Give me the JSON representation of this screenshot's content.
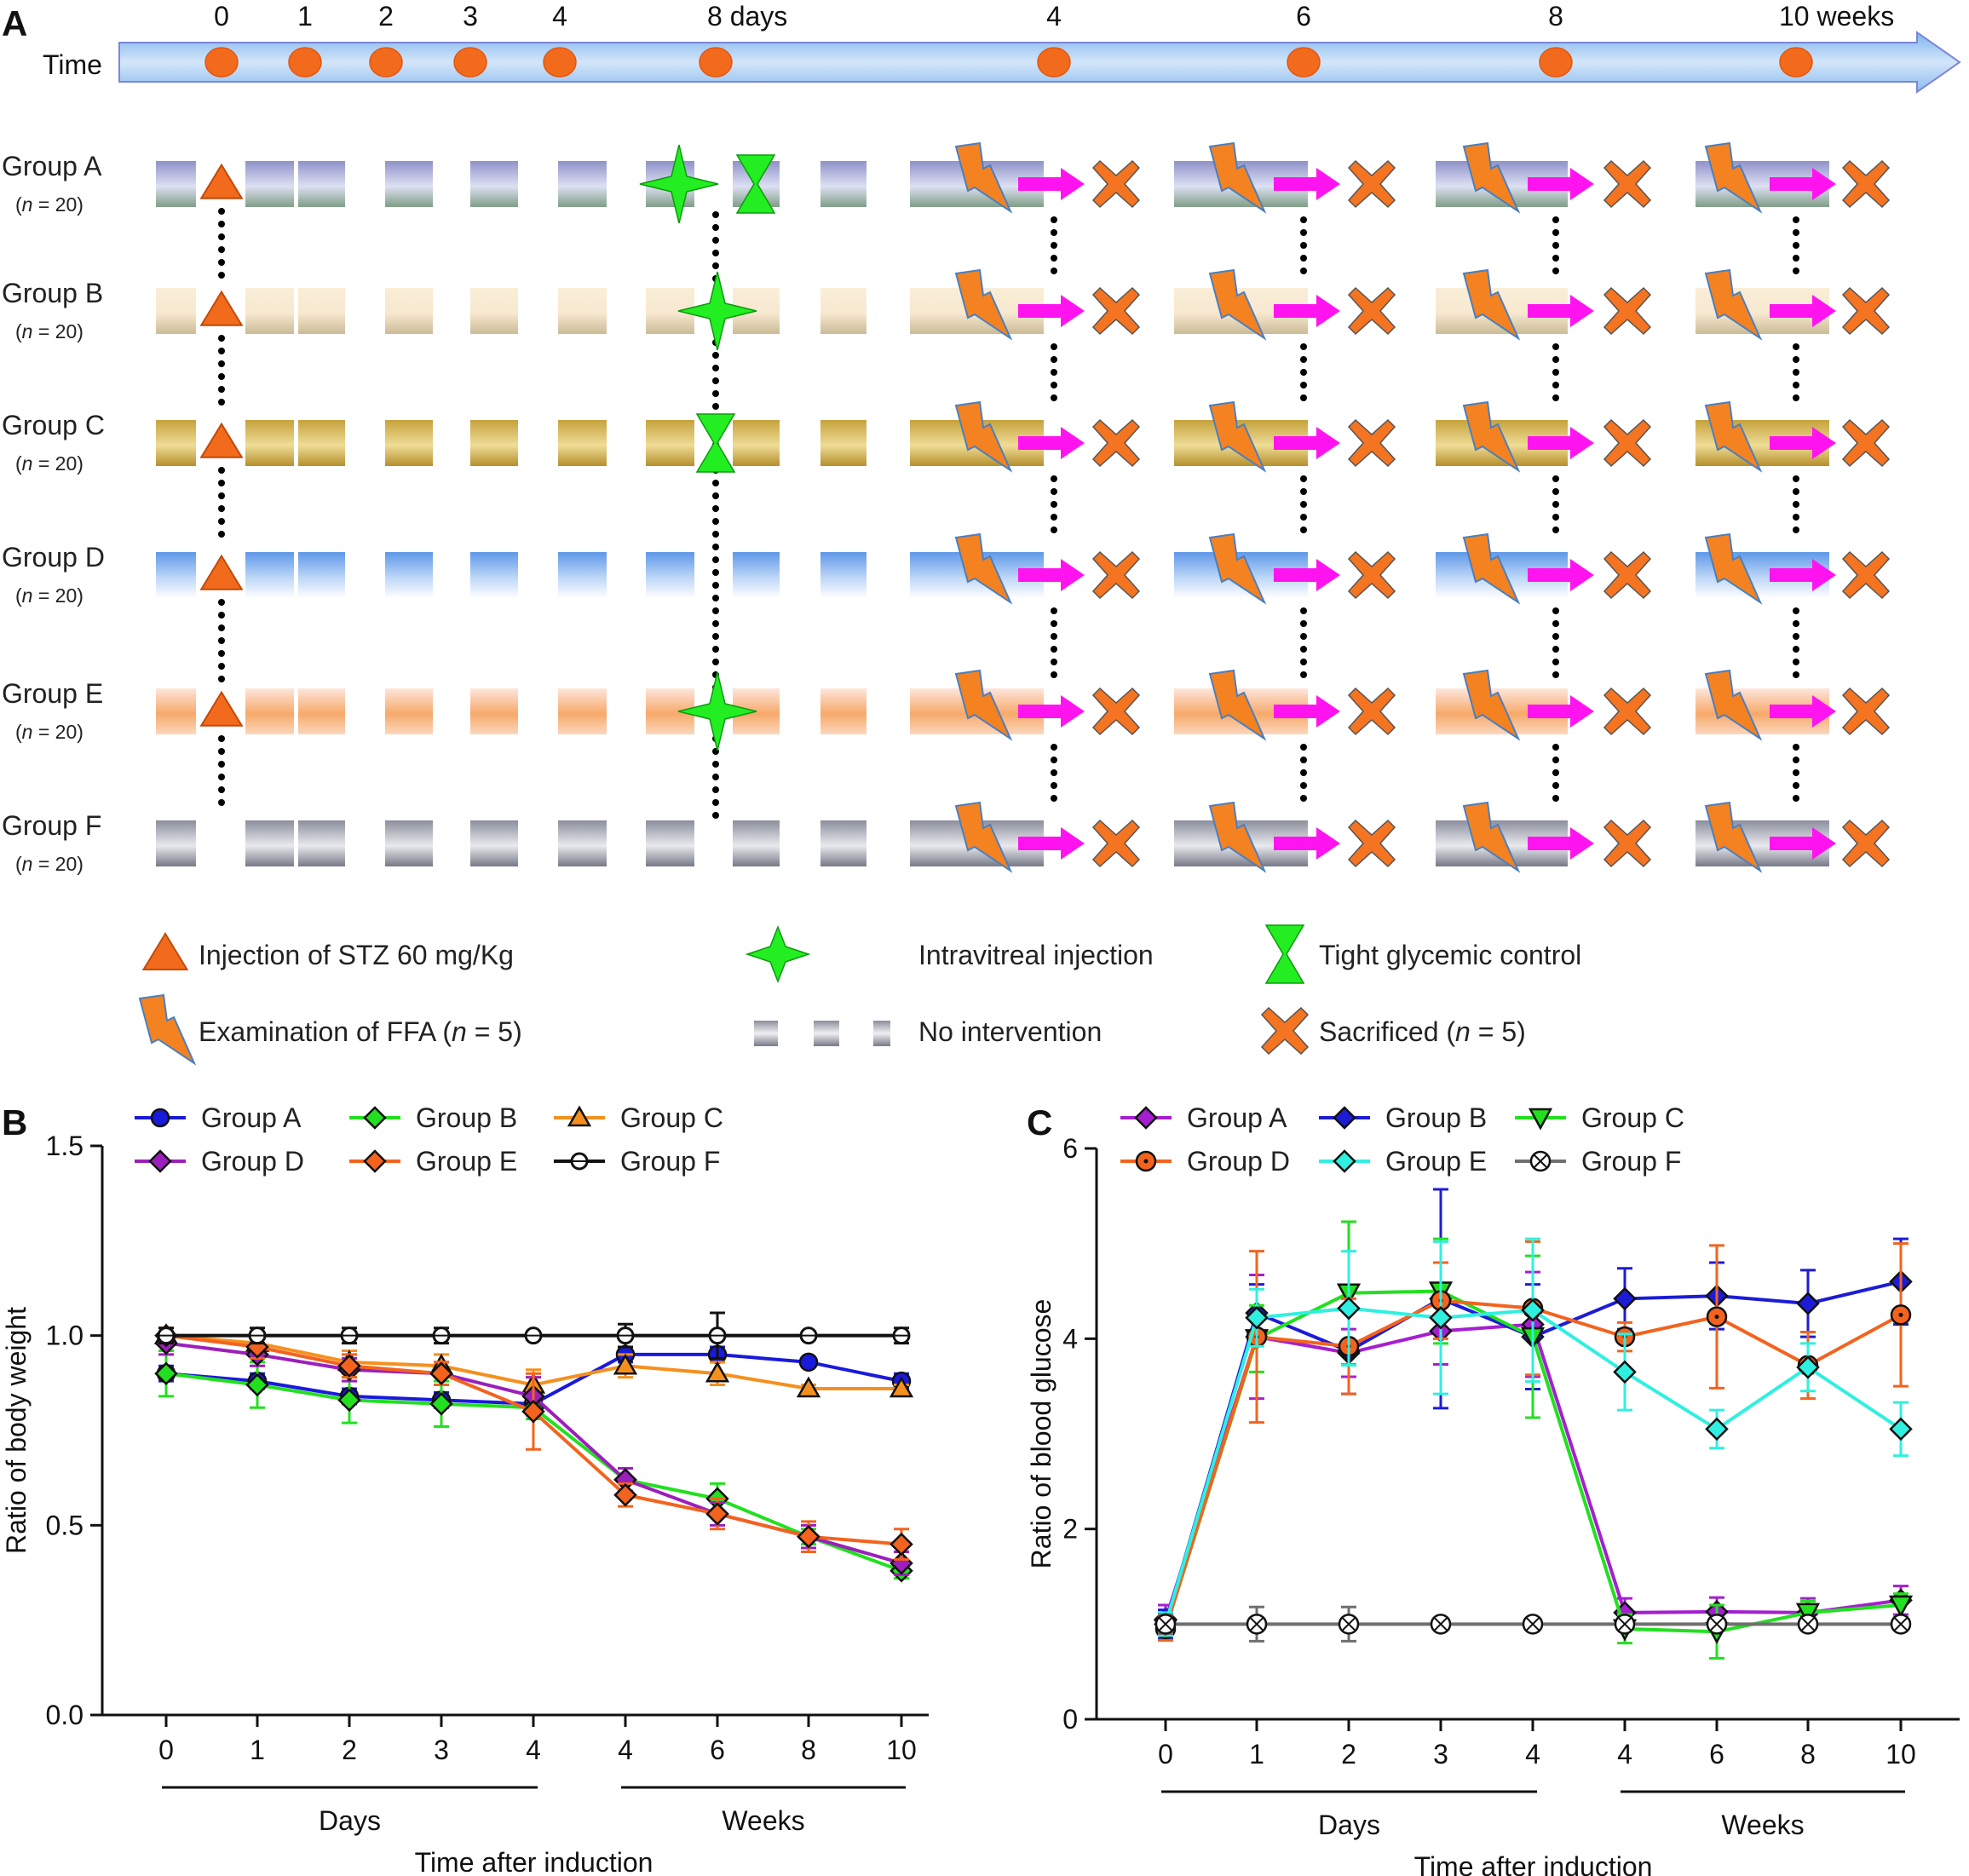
{
  "panels": {
    "a": "A",
    "b": "B",
    "c": "C"
  },
  "timeline": {
    "label": "Time",
    "ticks": [
      "0",
      "1",
      "2",
      "3",
      "4",
      "8 days",
      "4",
      "6",
      "8",
      "10 weeks"
    ],
    "dot_color": "#f26b1d"
  },
  "groups": [
    {
      "name": "Group A",
      "n": "20",
      "c1": "#8f92c8",
      "c2": "#dde0f2",
      "c3": "#7f9e86",
      "stz": true,
      "injection": true,
      "tight": true
    },
    {
      "name": "Group B",
      "n": "20",
      "c1": "#faeed7",
      "c2": "#f7e8d0",
      "c3": "#cbbb96",
      "stz": true,
      "injection": true,
      "tight": false
    },
    {
      "name": "Group C",
      "n": "20",
      "c1": "#c5a23c",
      "c2": "#efdc96",
      "c3": "#b58f2c",
      "stz": true,
      "injection": false,
      "tight": true
    },
    {
      "name": "Group D",
      "n": "20",
      "c1": "#5f98e8",
      "c2": "#bcd6f7",
      "c3": "#ffffff",
      "stz": true,
      "injection": false,
      "tight": false
    },
    {
      "name": "Group E",
      "n": "20",
      "c1": "#fde6dc",
      "c2": "#f7a96a",
      "c3": "#fbd7bd",
      "stz": true,
      "injection": true,
      "tight": false
    },
    {
      "name": "Group F",
      "n": "20",
      "c1": "#8b8e9c",
      "c2": "#e9eaee",
      "c3": "#767987",
      "stz": false,
      "injection": false,
      "tight": false
    }
  ],
  "legend_a": {
    "stz": "Injection of STZ 60 mg/Kg",
    "intravitreal": "Intravitreal injection",
    "tight": "Tight glycemic control",
    "ffa_prefix": "Examination of FFA (",
    "ffa_n": "n",
    "ffa_suffix": " = 5)",
    "none": "No intervention",
    "sac_prefix": "Sacrificed (",
    "sac_n": "n",
    "sac_suffix": " = 5)"
  },
  "colors": {
    "stz": "#f26b1d",
    "green": "#22ee22",
    "bolt": "#f58220",
    "arrow": "#ff14f0",
    "cross": "#f47421",
    "outline": "#4a7fbf"
  },
  "chart_data": [
    {
      "type": "line",
      "title": "",
      "ylabel": "Ratio of body weight",
      "xlabel": "Time after induction",
      "categories": [
        "0",
        "1",
        "2",
        "3",
        "4",
        "4",
        "6",
        "8",
        "10"
      ],
      "category_groups": [
        "Days",
        "Weeks"
      ],
      "ylim": [
        0,
        1.5
      ],
      "yticks": [
        "0.0",
        "0.5",
        "1.0",
        "1.5"
      ],
      "legend_placement": "top",
      "series": [
        {
          "name": "Group A",
          "color": "#1a1adb",
          "marker": "circle",
          "values": [
            0.9,
            0.88,
            0.84,
            0.83,
            0.82,
            0.95,
            0.95,
            0.93,
            0.88
          ],
          "err": [
            0.02,
            0.02,
            0.02,
            0.02,
            0.02,
            0.02,
            0.02,
            0.01,
            0.02
          ]
        },
        {
          "name": "Group B",
          "color": "#22e01f",
          "marker": "diamond",
          "values": [
            0.9,
            0.87,
            0.83,
            0.82,
            0.81,
            0.62,
            0.57,
            0.47,
            0.38
          ],
          "err": [
            0.06,
            0.06,
            0.06,
            0.06,
            0.03,
            0.03,
            0.04,
            0.02,
            0.02
          ]
        },
        {
          "name": "Group C",
          "color": "#f5901e",
          "marker": "triangle",
          "values": [
            1.0,
            0.98,
            0.93,
            0.92,
            0.87,
            0.92,
            0.9,
            0.86,
            0.86
          ],
          "err": [
            0.02,
            0.02,
            0.03,
            0.03,
            0.04,
            0.03,
            0.03,
            0.01,
            0.01
          ]
        },
        {
          "name": "Group D",
          "color": "#9b1fbb",
          "marker": "diamond",
          "values": [
            0.98,
            0.95,
            0.91,
            0.9,
            0.84,
            0.62,
            0.53,
            0.47,
            0.4
          ],
          "err": [
            0.03,
            0.03,
            0.03,
            0.03,
            0.05,
            0.03,
            0.03,
            0.03,
            0.03
          ]
        },
        {
          "name": "Group E",
          "color": "#f3631e",
          "marker": "diamond",
          "values": [
            1.0,
            0.97,
            0.92,
            0.9,
            0.8,
            0.58,
            0.53,
            0.47,
            0.45
          ],
          "err": [
            0.02,
            0.03,
            0.03,
            0.03,
            0.1,
            0.03,
            0.04,
            0.04,
            0.04
          ]
        },
        {
          "name": "Group F",
          "color": "#111111",
          "marker": "circle-open",
          "values": [
            1.0,
            1.0,
            1.0,
            1.0,
            1.0,
            1.0,
            1.0,
            1.0,
            1.0
          ],
          "err": [
            0.02,
            0.02,
            0.02,
            0.02,
            0.01,
            0.03,
            0.06,
            0.01,
            0.02
          ]
        }
      ]
    },
    {
      "type": "line",
      "title": "",
      "ylabel": "Ratio of blood glucose",
      "xlabel": "Time after induction",
      "categories": [
        "0",
        "1",
        "2",
        "3",
        "4",
        "4",
        "6",
        "8",
        "10"
      ],
      "category_groups": [
        "Days",
        "Weeks"
      ],
      "ylim": [
        0,
        6
      ],
      "yticks": [
        "0",
        "2",
        "4",
        "6"
      ],
      "legend_placement": "top",
      "series": [
        {
          "name": "Group A",
          "color": "#a51fd0",
          "marker": "diamond",
          "values": [
            1.05,
            4.02,
            3.85,
            4.08,
            4.15,
            1.12,
            1.13,
            1.12,
            1.25
          ],
          "err": [
            0.15,
            0.65,
            0.25,
            0.35,
            0.55,
            0.15,
            0.15,
            0.15,
            0.15
          ]
        },
        {
          "name": "Group B",
          "color": "#1c1cd6",
          "marker": "diamond",
          "values": [
            1.0,
            4.27,
            3.87,
            4.42,
            4.02,
            4.42,
            4.45,
            4.37,
            4.6
          ],
          "err": [
            0.15,
            0.3,
            0.45,
            1.15,
            0.55,
            0.32,
            0.35,
            0.35,
            0.45
          ]
        },
        {
          "name": "Group C",
          "color": "#22e01f",
          "marker": "triangle-down",
          "values": [
            0.95,
            4.0,
            4.48,
            4.5,
            4.02,
            0.95,
            0.92,
            1.12,
            1.2
          ],
          "err": [
            0.12,
            0.35,
            0.75,
            0.55,
            0.85,
            0.15,
            0.28,
            0.12,
            0.12
          ]
        },
        {
          "name": "Group D",
          "color": "#f3631e",
          "marker": "circle-dot",
          "values": [
            0.95,
            4.02,
            3.92,
            4.4,
            4.32,
            4.02,
            4.23,
            3.72,
            4.25
          ],
          "err": [
            0.12,
            0.9,
            0.5,
            0.4,
            0.7,
            0.15,
            0.75,
            0.35,
            0.75
          ]
        },
        {
          "name": "Group E",
          "color": "#2ff0e0",
          "marker": "diamond",
          "values": [
            1.0,
            4.22,
            4.32,
            4.22,
            4.3,
            3.65,
            3.05,
            3.7,
            3.05
          ],
          "err": [
            0.12,
            0.3,
            0.6,
            0.8,
            0.75,
            0.4,
            0.2,
            0.25,
            0.28
          ]
        },
        {
          "name": "Group F",
          "color": "#6f6f6f",
          "marker": "circle-x",
          "values": [
            1.0,
            1.0,
            1.0,
            1.0,
            1.0,
            1.0,
            1.0,
            1.0,
            1.0
          ],
          "err": [
            0.1,
            0.18,
            0.18,
            0.05,
            0.03,
            0.02,
            0.02,
            0.02,
            0.02
          ]
        }
      ]
    }
  ]
}
